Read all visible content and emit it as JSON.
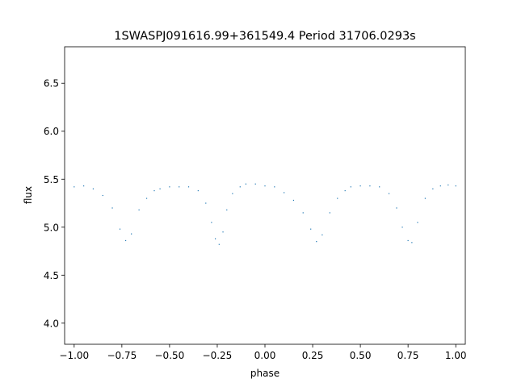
{
  "chart_data": {
    "type": "scatter",
    "title": "1SWASPJ091616.99+361549.4 Period 31706.0293s",
    "xlabel": "phase",
    "ylabel": "flux",
    "xlim": [
      -1.05,
      1.05
    ],
    "ylim": [
      3.78,
      6.88
    ],
    "x_ticks": [
      -1.0,
      -0.75,
      -0.5,
      -0.25,
      0.0,
      0.25,
      0.5,
      0.75,
      1.0
    ],
    "x_tick_labels": [
      "−1.00",
      "−0.75",
      "−0.50",
      "−0.25",
      "0.00",
      "0.25",
      "0.50",
      "0.75",
      "1.00"
    ],
    "y_ticks": [
      4.0,
      4.5,
      5.0,
      5.5,
      6.0,
      6.5
    ],
    "y_tick_labels": [
      "4.0",
      "4.5",
      "5.0",
      "5.5",
      "6.0",
      "6.5"
    ],
    "grid": false,
    "marker_color": "#1f77b4",
    "series": [
      {
        "x": [
          -1.0,
          -0.95,
          -0.9,
          -0.85,
          -0.8,
          -0.76,
          -0.73,
          -0.7,
          -0.66,
          -0.62,
          -0.58,
          -0.55,
          -0.5,
          -0.45,
          -0.4,
          -0.35,
          -0.31,
          -0.28,
          -0.26,
          -0.24,
          -0.22,
          -0.2,
          -0.17,
          -0.13,
          -0.1,
          -0.05,
          0.0,
          0.05,
          0.1,
          0.15,
          0.2,
          0.24,
          0.27,
          0.3,
          0.34,
          0.38,
          0.42,
          0.45,
          0.5,
          0.55,
          0.6,
          0.65,
          0.69,
          0.72,
          0.75,
          0.77,
          0.8,
          0.84,
          0.88,
          0.92,
          0.96,
          1.0
        ],
        "y": [
          5.42,
          5.43,
          5.4,
          5.33,
          5.2,
          4.98,
          4.86,
          4.93,
          5.18,
          5.3,
          5.38,
          5.4,
          5.42,
          5.42,
          5.42,
          5.38,
          5.25,
          5.05,
          4.88,
          4.82,
          4.95,
          5.18,
          5.35,
          5.42,
          5.45,
          5.45,
          5.43,
          5.42,
          5.36,
          5.28,
          5.15,
          4.98,
          4.85,
          4.92,
          5.15,
          5.3,
          5.38,
          5.42,
          5.43,
          5.43,
          5.42,
          5.35,
          5.2,
          5.0,
          4.86,
          4.84,
          5.05,
          5.3,
          5.4,
          5.43,
          5.44,
          5.43
        ]
      }
    ]
  }
}
